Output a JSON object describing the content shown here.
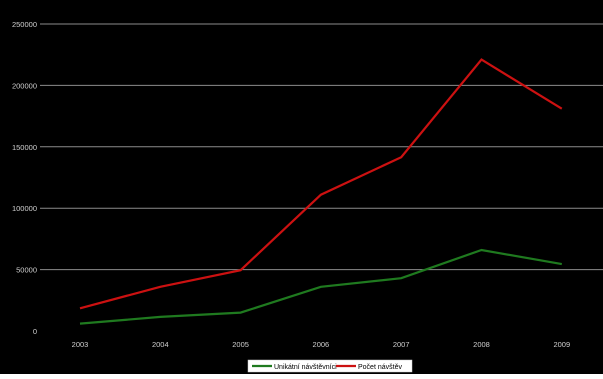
{
  "colors": {
    "background": "#000000",
    "gridline": "#8c8c8c",
    "tick_label": "#cfcfcf",
    "legend_bg": "#ffffff",
    "legend_text": "#000000"
  },
  "chart_data": {
    "type": "line",
    "title": "",
    "xlabel": "",
    "ylabel": "",
    "categories": [
      "2003",
      "2004",
      "2005",
      "2006",
      "2007",
      "2008",
      "2009"
    ],
    "ylim": [
      0,
      250000
    ],
    "yticks": [
      0,
      50000,
      100000,
      150000,
      200000,
      250000
    ],
    "ytick_labels": [
      "0",
      "50000",
      "100000",
      "150000",
      "200000",
      "250000"
    ],
    "grid": true,
    "legend_position": "bottom",
    "series": [
      {
        "name": "Unikátní návštěvníci",
        "color": "#1f7a1f",
        "values": [
          6000,
          11500,
          15000,
          36000,
          43000,
          66000,
          54500
        ]
      },
      {
        "name": "Počet návštěv",
        "color": "#cc1111",
        "values": [
          18500,
          36000,
          49500,
          111000,
          141500,
          221000,
          181000
        ]
      }
    ]
  }
}
